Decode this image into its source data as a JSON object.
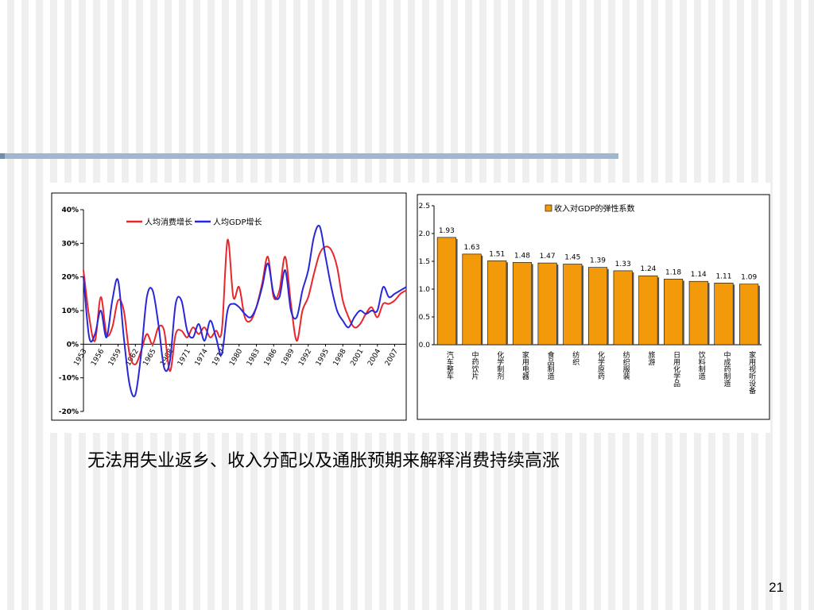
{
  "caption": "无法用失业返乡、收入分配以及通胀预期来解释消费持续高涨",
  "page_number": "21",
  "colors": {
    "consumption": "#e8262b",
    "gdp": "#2828d8",
    "bar": "#f39a0b"
  },
  "chart_data": [
    {
      "type": "line",
      "legend": {
        "placement": "top-center",
        "entries": [
          "人均消费增长",
          "人均GDP增长"
        ]
      },
      "ylim": [
        -20,
        40
      ],
      "yticks": [
        -20,
        -10,
        0,
        10,
        20,
        30,
        40
      ],
      "ytick_labels": [
        "-20%",
        "-10%",
        "0%",
        "10%",
        "20%",
        "30%",
        "40%"
      ],
      "x_range": [
        1953,
        2009
      ],
      "xtick_labels": [
        "1953",
        "1956",
        "1959",
        "1962",
        "1965",
        "1968",
        "1971",
        "1974",
        "1977",
        "1980",
        "1983",
        "1986",
        "1989",
        "1992",
        "1995",
        "1998",
        "2001",
        "2004",
        "2007"
      ],
      "grid": false,
      "series": [
        {
          "name": "人均消费增长",
          "key": "consumption",
          "x": [
            1953,
            1954,
            1955,
            1956,
            1957,
            1958,
            1959,
            1960,
            1961,
            1962,
            1963,
            1964,
            1965,
            1966,
            1967,
            1968,
            1969,
            1970,
            1971,
            1972,
            1973,
            1974,
            1975,
            1976,
            1977,
            1978,
            1979,
            1980,
            1981,
            1982,
            1983,
            1984,
            1985,
            1986,
            1987,
            1988,
            1989,
            1990,
            1991,
            1992,
            1993,
            1994,
            1995,
            1996,
            1997,
            1998,
            1999,
            2000,
            2001,
            2002,
            2003,
            2004,
            2005,
            2006,
            2007,
            2008,
            2009
          ],
          "y": [
            22,
            8,
            1,
            14,
            3,
            5,
            13,
            10,
            -3,
            -6,
            -2,
            3,
            0,
            5,
            4,
            -8,
            3,
            4,
            2,
            5,
            3,
            5,
            2,
            4,
            4,
            31,
            14,
            17,
            8,
            7,
            11,
            18,
            26,
            14,
            16,
            26,
            12,
            1,
            10,
            14,
            21,
            27,
            29,
            28,
            23,
            13,
            8,
            5,
            6,
            9,
            11,
            8,
            12,
            12,
            13,
            15,
            16
          ]
        },
        {
          "name": "人均GDP增长",
          "key": "gdp",
          "x": [
            1953,
            1954,
            1955,
            1956,
            1957,
            1958,
            1959,
            1960,
            1961,
            1962,
            1963,
            1964,
            1965,
            1966,
            1967,
            1968,
            1969,
            1970,
            1971,
            1972,
            1973,
            1974,
            1975,
            1976,
            1977,
            1978,
            1979,
            1980,
            1981,
            1982,
            1983,
            1984,
            1985,
            1986,
            1987,
            1988,
            1989,
            1990,
            1991,
            1992,
            1993,
            1994,
            1995,
            1996,
            1997,
            1998,
            1999,
            2000,
            2001,
            2002,
            2003,
            2004,
            2005,
            2006,
            2007,
            2008,
            2009
          ],
          "y": [
            20,
            2,
            3,
            10,
            2,
            13,
            19,
            2,
            -12,
            -15,
            -3,
            14,
            16,
            6,
            -7,
            -5,
            12,
            13,
            4,
            2,
            6,
            1,
            7,
            2,
            -3,
            10,
            12,
            11,
            9,
            8,
            11,
            17,
            24,
            15,
            14,
            22,
            10,
            8,
            16,
            22,
            32,
            35,
            26,
            17,
            10,
            7,
            5,
            8,
            10,
            9,
            10,
            10,
            17,
            14,
            15,
            16,
            17
          ]
        }
      ]
    },
    {
      "type": "bar",
      "legend": {
        "placement": "top-right",
        "entries": [
          "收入对GDP的弹性系数"
        ]
      },
      "ylim": [
        0,
        2.5
      ],
      "yticks": [
        0,
        0.5,
        1,
        1.5,
        2,
        2.5
      ],
      "ytick_labels": [
        "0.0",
        "0.5",
        "1.0",
        "1.5",
        "2.0",
        "2.5"
      ],
      "grid": false,
      "categories": [
        "汽车整车",
        "中药饮片",
        "化学制剂",
        "家用电器",
        "食品制造",
        "纺织",
        "化学原药",
        "纺织服装",
        "旅游",
        "日用化学品",
        "饮料制造",
        "中成药制造",
        "家用视听设备"
      ],
      "values": [
        1.93,
        1.63,
        1.51,
        1.48,
        1.47,
        1.45,
        1.39,
        1.33,
        1.24,
        1.18,
        1.14,
        1.11,
        1.09
      ],
      "value_labels": [
        "1.93",
        "1.63",
        "1.51",
        "1.48",
        "1.47",
        "1.45",
        "1.39",
        "1.33",
        "1.24",
        "1.18",
        "1.14",
        "1.11",
        "1.09"
      ]
    }
  ]
}
